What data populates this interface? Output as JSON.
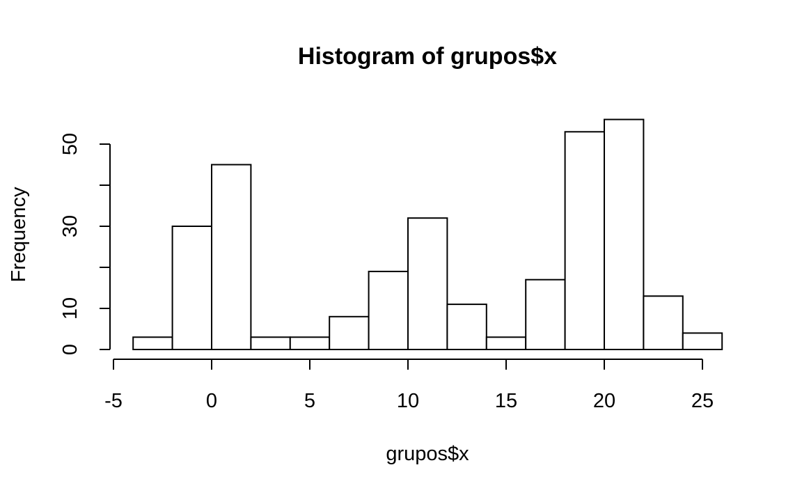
{
  "chart_data": {
    "type": "bar",
    "title": "Histogram of grupos$x",
    "xlabel": "grupos$x",
    "ylabel": "Frequency",
    "bin_edges": [
      -4,
      -2,
      0,
      2,
      4,
      6,
      8,
      10,
      12,
      14,
      16,
      18,
      20,
      22,
      24,
      26
    ],
    "values": [
      3,
      30,
      45,
      3,
      3,
      8,
      19,
      32,
      11,
      3,
      17,
      53,
      56,
      13,
      4
    ],
    "xlim": [
      -5,
      25
    ],
    "ylim": [
      0,
      50
    ],
    "x_ticks": [
      -5,
      0,
      5,
      10,
      15,
      20,
      25
    ],
    "x_tick_labels": [
      "-5",
      "0",
      "5",
      "10",
      "15",
      "20",
      "25"
    ],
    "y_ticks": [
      0,
      10,
      20,
      30,
      40,
      50
    ],
    "y_tick_labels": [
      "0",
      "10",
      "",
      "30",
      "",
      "50"
    ],
    "grid": false,
    "legend": "none",
    "colors": {
      "bar_fill": "#ffffff",
      "bar_stroke": "#000000"
    }
  }
}
